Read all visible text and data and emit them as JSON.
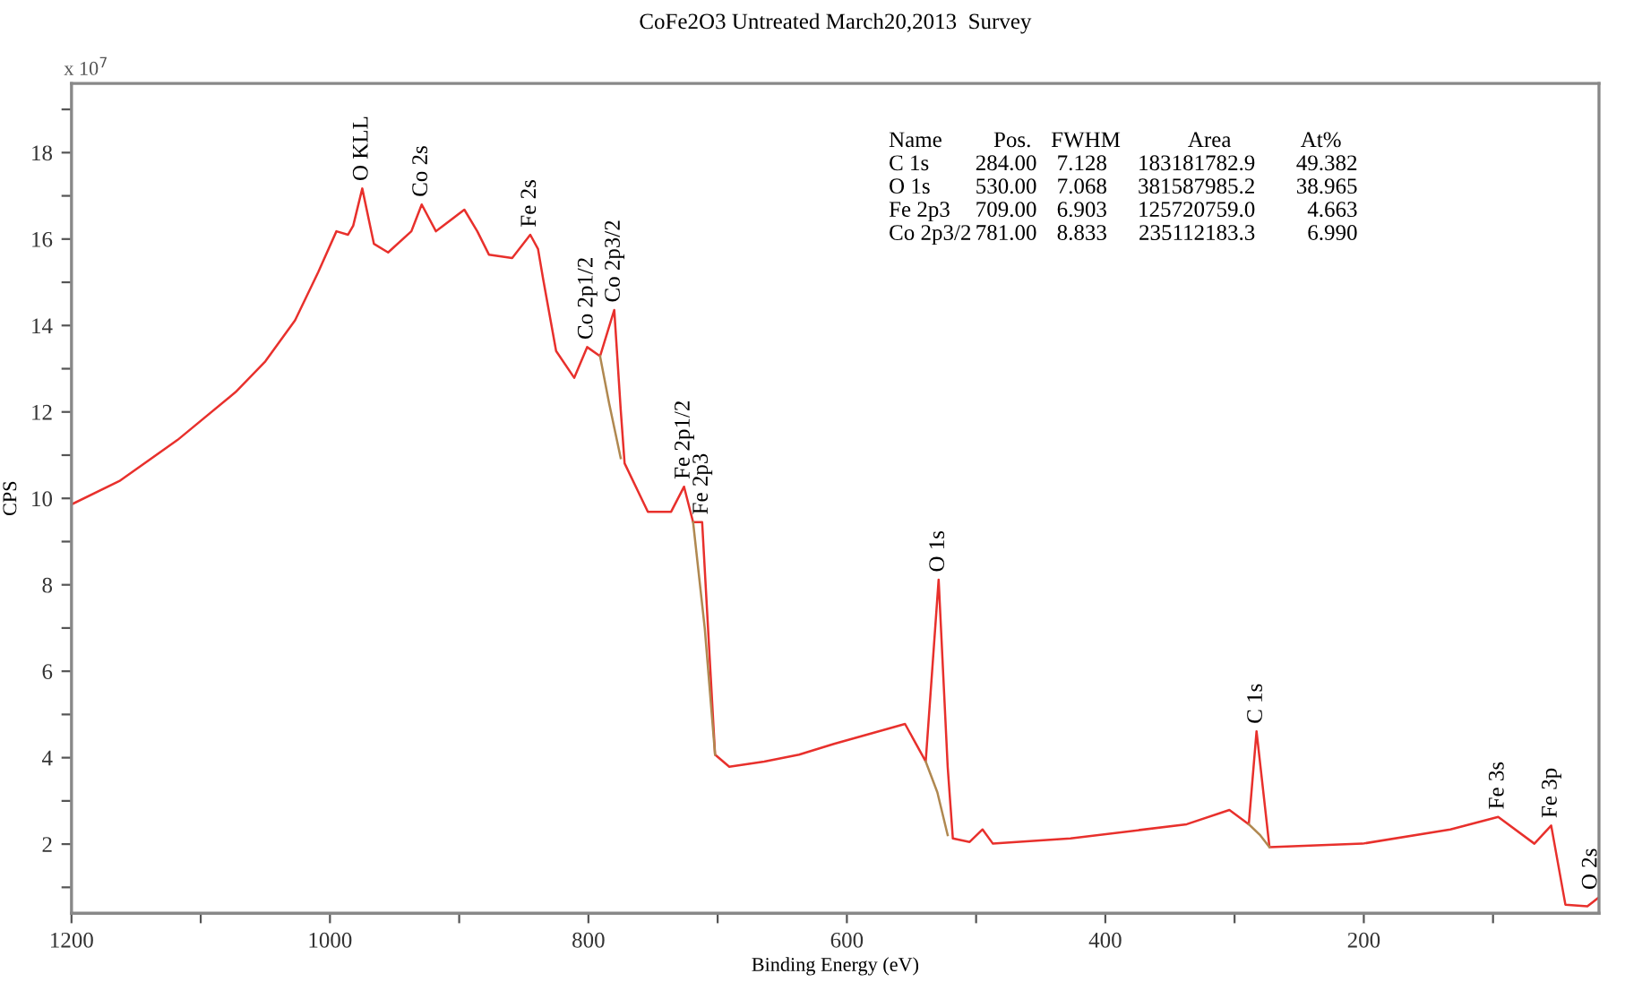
{
  "chart_data": {
    "type": "line",
    "title": "CoFe2O3 Untreated March20,2013  Survey",
    "xlabel": "Binding Energy (eV)",
    "ylabel": "CPS",
    "xlim": [
      1200,
      18
    ],
    "ylim": [
      0.4,
      19.6
    ],
    "xticks": [
      1200,
      {
        "value": 1100,
        "label": null
      },
      1000,
      {
        "value": 900,
        "label": null
      },
      800,
      {
        "value": 700,
        "label": null
      },
      600,
      {
        "value": 500,
        "label": null
      },
      400,
      {
        "value": 300,
        "label": null
      },
      200,
      {
        "value": 100,
        "label": null
      }
    ],
    "yticks": [
      {
        "value": 1,
        "label": null
      },
      2,
      {
        "value": 3,
        "label": null
      },
      4,
      {
        "value": 5,
        "label": null
      },
      6,
      {
        "value": 7,
        "label": null
      },
      8,
      {
        "value": 9,
        "label": null
      },
      10,
      {
        "value": 11,
        "label": null
      },
      12,
      {
        "value": 13,
        "label": null
      },
      14,
      {
        "value": 15,
        "label": null
      },
      16,
      {
        "value": 17,
        "label": null
      },
      18,
      {
        "value": 19,
        "label": null
      }
    ],
    "grid": false,
    "legend": false,
    "marker": "none",
    "line_style": "solid",
    "series": [
      {
        "color": "#e8302c",
        "x": [
          1200,
          1163,
          1118,
          1073,
          1050,
          1027,
          1009,
          995,
          986,
          982,
          975,
          966,
          955,
          937,
          929,
          918,
          896,
          886,
          877,
          859,
          845,
          839,
          835,
          825,
          811,
          801,
          791,
          780,
          775,
          772,
          754,
          736,
          726,
          719,
          712,
          702,
          691,
          664,
          637,
          610,
          555,
          539,
          529,
          522,
          518,
          505,
          495,
          487,
          427,
          337,
          304,
          289,
          283,
          273,
          201,
          133,
          96,
          68,
          55,
          44,
          27,
          18
        ],
        "values": [
          9.86,
          10.4,
          11.35,
          12.46,
          13.17,
          14.12,
          15.24,
          16.18,
          16.1,
          16.31,
          17.17,
          15.89,
          15.69,
          16.18,
          16.8,
          16.18,
          16.68,
          16.18,
          15.64,
          15.56,
          16.1,
          15.77,
          15.07,
          13.41,
          12.79,
          13.5,
          13.29,
          14.36,
          12.05,
          10.81,
          9.69,
          9.69,
          10.27,
          9.45,
          9.45,
          4.07,
          3.79,
          3.91,
          4.07,
          4.32,
          4.78,
          3.91,
          8.12,
          3.79,
          2.13,
          2.05,
          2.34,
          2.01,
          2.13,
          2.46,
          2.79,
          2.46,
          4.61,
          1.93,
          2.01,
          2.34,
          2.63,
          2.01,
          2.43,
          0.6,
          0.56,
          0.77
        ]
      },
      {
        "color": "#b08850",
        "x": [
          791,
          784,
          775
        ],
        "values": [
          13.29,
          12.2,
          10.93
        ]
      },
      {
        "color": "#b08850",
        "x": [
          719,
          710,
          702
        ],
        "values": [
          9.45,
          7.0,
          4.07
        ]
      },
      {
        "color": "#b08850",
        "x": [
          539,
          530,
          522
        ],
        "values": [
          3.91,
          3.2,
          2.21
        ]
      },
      {
        "color": "#b08850",
        "x": [
          289,
          280,
          273
        ],
        "values": [
          2.46,
          2.2,
          1.93
        ]
      }
    ],
    "annotations": [
      "x 10$^{7}$",
      "Name\tPos.\tFWHM\tArea\tAt%",
      "C 1s\t284.00\t7.128\t183181782.9\t49.382",
      "O 1s\t530.00\t7.068\t381587985.2\t38.965",
      "Fe 2p3\t709.00\t6.903\t125720759.0\t4.663",
      "Co 2p3/2\t781.00\t8.833\t235112183.3\t6.990",
      {
        "text": "O KLL",
        "x": 975,
        "y": 17.17
      },
      {
        "text": "Co 2s",
        "x": 929,
        "y": 16.8
      },
      {
        "text": "Fe 2s",
        "x": 845,
        "y": 16.1
      },
      {
        "text": "Co 2p1/2",
        "x": 801,
        "y": 13.5
      },
      {
        "text": "Co 2p3/2",
        "x": 780,
        "y": 14.36
      },
      {
        "text": "Fe 2p1/2",
        "x": 726,
        "y": 10.27
      },
      {
        "text": "Fe 2p3",
        "x": 712,
        "y": 9.45
      },
      {
        "text": "O 1s",
        "x": 529,
        "y": 8.12
      },
      {
        "text": "C 1s",
        "x": 283,
        "y": 4.61
      },
      {
        "text": "Fe 3s",
        "x": 96,
        "y": 2.63
      },
      {
        "text": "Fe 3p",
        "x": 55,
        "y": 2.43
      },
      {
        "text": "O 2s",
        "x": 24,
        "y": 0.77
      }
    ]
  }
}
